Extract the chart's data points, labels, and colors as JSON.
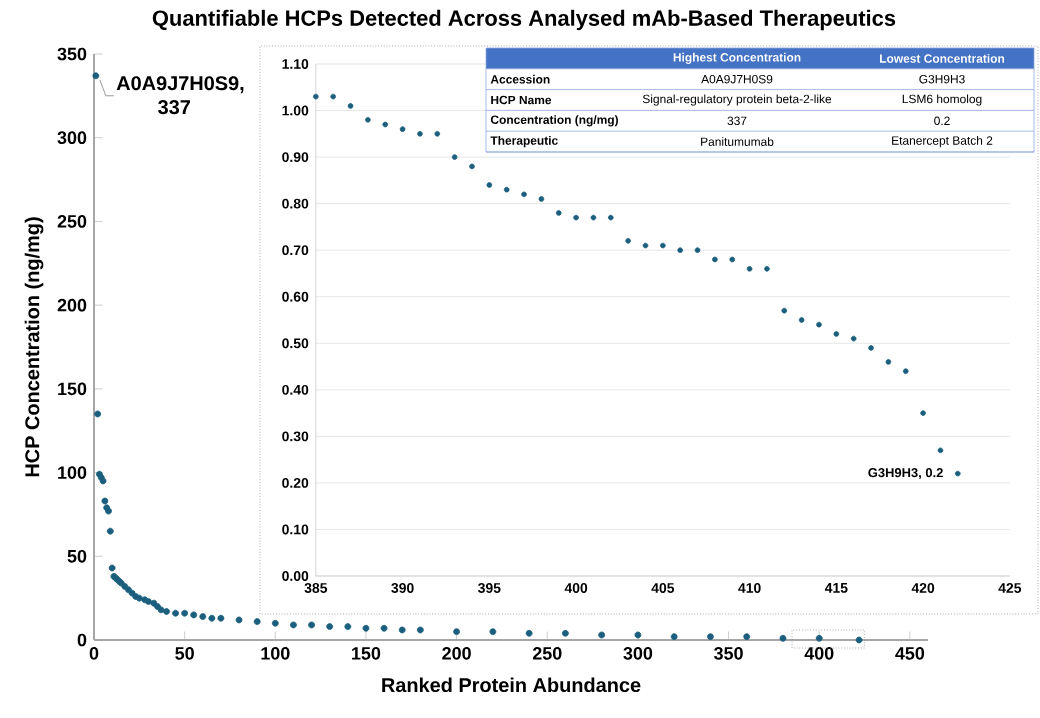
{
  "chart_data": [
    {
      "type": "scatter",
      "title": "Quantifiable HCPs Detected Across Analysed mAb-Based Therapeutics",
      "xlabel": "Ranked Protein Abundance",
      "ylabel": "HCP Concentration (ng/mg)",
      "marker": "circle",
      "color": "#1b5e7d",
      "x": [
        1,
        2,
        3,
        4,
        5,
        6,
        7,
        8,
        9,
        10,
        11,
        12,
        13,
        14,
        15,
        17,
        19,
        21,
        23,
        25,
        28,
        30,
        33,
        35,
        37,
        40,
        45,
        50,
        55,
        60,
        65,
        70,
        80,
        90,
        100,
        110,
        120,
        130,
        140,
        150,
        160,
        170,
        180,
        200,
        220,
        240,
        260,
        280,
        300,
        320,
        340,
        360,
        380,
        400,
        422
      ],
      "values": [
        337,
        135,
        99,
        97,
        95,
        83,
        79,
        77,
        65,
        43,
        38,
        37,
        36,
        35,
        34,
        32,
        30,
        28,
        26,
        25,
        24,
        23,
        22,
        20,
        18,
        17,
        16,
        16,
        15,
        14,
        13,
        13,
        12,
        11,
        10,
        9,
        9,
        8,
        8,
        7,
        7,
        6,
        6,
        5,
        5,
        4,
        4,
        3,
        3,
        2,
        2,
        2,
        1,
        1,
        0
      ],
      "xlim": [
        0,
        460
      ],
      "xticks": [
        0,
        50,
        100,
        150,
        200,
        250,
        300,
        350,
        400,
        450
      ],
      "ylim": [
        0,
        350
      ],
      "yticks": [
        0,
        50,
        100,
        150,
        200,
        250,
        300,
        350
      ],
      "annotations": [
        {
          "text": "A0A9J7H0S9, 337",
          "x": 1,
          "y": 337
        }
      ]
    },
    {
      "type": "scatter",
      "marker": "circle",
      "color": "#1b5e7d",
      "grid": "y",
      "x": [
        385,
        386,
        387,
        388,
        389,
        390,
        391,
        392,
        393,
        394,
        395,
        396,
        397,
        398,
        399,
        400,
        401,
        402,
        403,
        404,
        405,
        406,
        407,
        408,
        409,
        410,
        411,
        412,
        413,
        414,
        415,
        416,
        417,
        418,
        419,
        420,
        421,
        422
      ],
      "values": [
        1.03,
        1.03,
        1.01,
        0.98,
        0.97,
        0.96,
        0.95,
        0.95,
        0.9,
        0.88,
        0.84,
        0.83,
        0.82,
        0.81,
        0.78,
        0.77,
        0.77,
        0.77,
        0.72,
        0.71,
        0.71,
        0.7,
        0.7,
        0.68,
        0.68,
        0.66,
        0.66,
        0.57,
        0.55,
        0.54,
        0.52,
        0.51,
        0.49,
        0.46,
        0.44,
        0.35,
        0.27,
        0.22
      ],
      "xlim": [
        385,
        425
      ],
      "xticks": [
        385,
        390,
        395,
        400,
        405,
        410,
        415,
        420,
        425
      ],
      "ylim": [
        0,
        1.1
      ],
      "yticks": [
        {
          "value": 0,
          "label": "0.00"
        },
        {
          "value": 0.1,
          "label": "0.10"
        },
        {
          "value": 0.2,
          "label": "0.20"
        },
        {
          "value": 0.3,
          "label": "0.30"
        },
        {
          "value": 0.4,
          "label": "0.40"
        },
        {
          "value": 0.5,
          "label": "0.50"
        },
        {
          "value": 0.6,
          "label": "0.60"
        },
        {
          "value": 0.7,
          "label": "0.70"
        },
        {
          "value": 0.8,
          "label": "0.80"
        },
        {
          "value": 0.9,
          "label": "0.90"
        },
        {
          "value": 1.0,
          "label": "1.00"
        },
        {
          "value": 1.1,
          "label": "1.10"
        }
      ],
      "annotations": [
        {
          "text": "G3H9H3, 0.2",
          "x": 422,
          "y": 0.22
        }
      ]
    },
    {
      "type": "other",
      "color": "#4472c4",
      "categories": [
        null,
        "Highest Concentration",
        "Lowest Concentration"
      ],
      "y_categories": [
        "Accession",
        "HCP Name",
        "Concentration (ng/mg)",
        "Therapeutic"
      ],
      "cell_labels": [
        [
          "A0A9J7H0S9",
          "G3H9H3"
        ],
        [
          "Signal-regulatory protein beta-2-like",
          "LSM6 homolog"
        ],
        [
          "337",
          "0.2"
        ],
        [
          "Panitumumab",
          "Etanercept Batch 2"
        ]
      ]
    }
  ]
}
